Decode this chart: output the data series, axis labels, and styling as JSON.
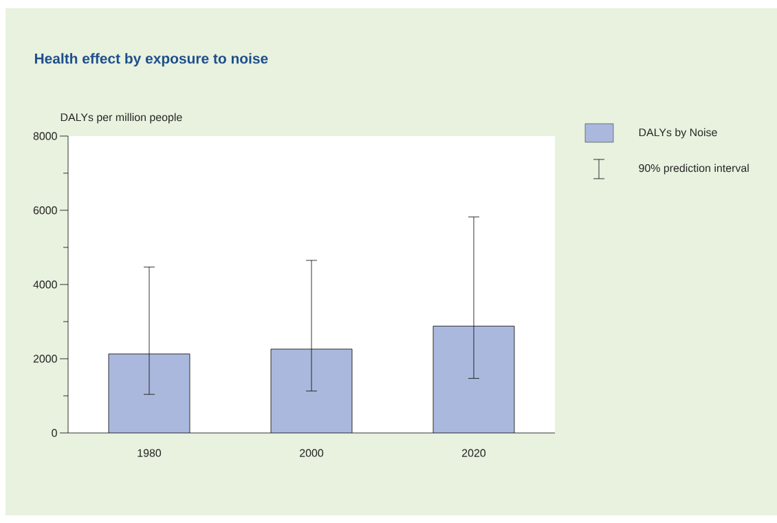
{
  "chart_data": {
    "type": "bar",
    "title": "Health effect by exposure to noise",
    "ylabel": "DALYs per million people",
    "categories": [
      "1980",
      "2000",
      "2020"
    ],
    "series": [
      {
        "name": "DALYs by Noise",
        "color": "#abb8dd",
        "values": [
          2130,
          2260,
          2880
        ],
        "errors": [
          [
            1040,
            4470
          ],
          [
            1130,
            4650
          ],
          [
            1470,
            5820
          ]
        ]
      }
    ],
    "annotations": [
      "90% prediction interval"
    ],
    "ylim": [
      0,
      8000
    ],
    "yticks": [
      0,
      {
        "value": 1000,
        "label": null
      },
      2000,
      {
        "value": 3000,
        "label": null
      },
      4000,
      {
        "value": 5000,
        "label": null
      },
      6000,
      {
        "value": 7000,
        "label": null
      },
      8000
    ],
    "legend": "top right",
    "grid": false
  }
}
